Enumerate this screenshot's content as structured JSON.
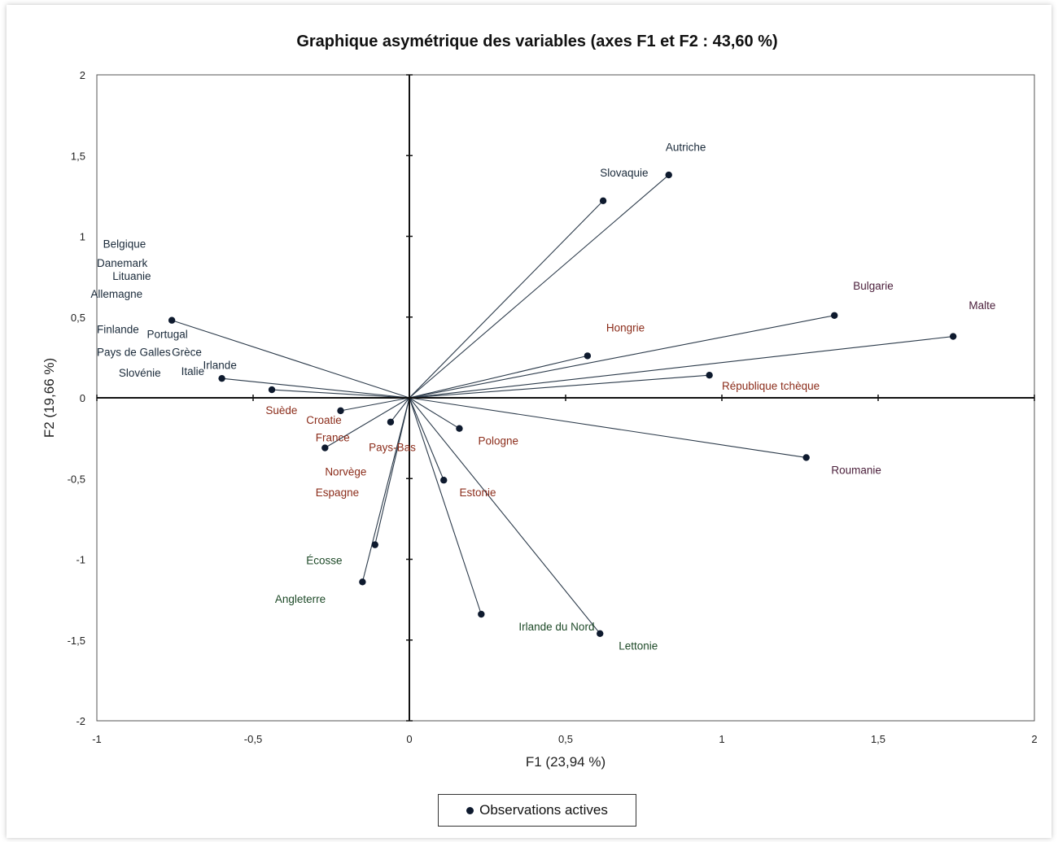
{
  "chart_data": {
    "type": "scatter",
    "title": "Graphique asymétrique des variables (axes F1 et F2 : 43,60 %)",
    "xlabel": "F1 (23,94 %)",
    "ylabel": "F2 (19,66 %)",
    "xlim": [
      -1,
      2
    ],
    "ylim": [
      -2,
      2
    ],
    "x_ticks": [
      -1,
      -0.5,
      0,
      0.5,
      1,
      1.5,
      2
    ],
    "x_tick_labels": [
      "-1",
      "-0,5",
      "0",
      "0,5",
      "1",
      "1,5",
      "2"
    ],
    "y_ticks": [
      -2,
      -1.5,
      -1,
      -0.5,
      0,
      0.5,
      1,
      1.5,
      2
    ],
    "y_tick_labels": [
      "-2",
      "-1,5",
      "-1",
      "-0,5",
      "0",
      "0,5",
      "1",
      "1,5",
      "2"
    ],
    "grid": false,
    "legend": {
      "position": "bottom",
      "label": "Observations actives"
    },
    "colors": {
      "point": "#0e1a2e",
      "line": "#2b3a4a",
      "label_dark": "#1a2a3a",
      "label_brown": "#8b2c1a",
      "label_green": "#1e4a28",
      "label_purple": "#4a1e3a"
    },
    "points": [
      {
        "x": 0.83,
        "y": 1.38
      },
      {
        "x": 0.62,
        "y": 1.22
      },
      {
        "x": 1.36,
        "y": 0.51
      },
      {
        "x": 1.74,
        "y": 0.38
      },
      {
        "x": 0.57,
        "y": 0.26
      },
      {
        "x": 0.96,
        "y": 0.14
      },
      {
        "x": 1.27,
        "y": -0.37
      },
      {
        "x": 0.16,
        "y": -0.19
      },
      {
        "x": 0.11,
        "y": -0.51
      },
      {
        "x": 0.23,
        "y": -1.34
      },
      {
        "x": 0.61,
        "y": -1.46
      },
      {
        "x": -0.76,
        "y": 0.48
      },
      {
        "x": -0.6,
        "y": 0.12
      },
      {
        "x": -0.44,
        "y": 0.05
      },
      {
        "x": -0.22,
        "y": -0.08
      },
      {
        "x": -0.06,
        "y": -0.15
      },
      {
        "x": -0.27,
        "y": -0.31
      },
      {
        "x": -0.11,
        "y": -0.91
      },
      {
        "x": -0.15,
        "y": -1.14
      }
    ],
    "labels": [
      {
        "text": "Autriche",
        "x": 0.82,
        "y": 1.53,
        "color": "dark"
      },
      {
        "text": "Slovaquie",
        "x": 0.61,
        "y": 1.37,
        "color": "dark"
      },
      {
        "text": "Bulgarie",
        "x": 1.42,
        "y": 0.67,
        "color": "purple"
      },
      {
        "text": "Malte",
        "x": 1.79,
        "y": 0.55,
        "color": "purple"
      },
      {
        "text": "Hongrie",
        "x": 0.63,
        "y": 0.41,
        "color": "brown"
      },
      {
        "text": "République tchèque",
        "x": 1.0,
        "y": 0.05,
        "color": "brown"
      },
      {
        "text": "Roumanie",
        "x": 1.35,
        "y": -0.47,
        "color": "purple"
      },
      {
        "text": "Pologne",
        "x": 0.22,
        "y": -0.29,
        "color": "brown"
      },
      {
        "text": "Estonie",
        "x": 0.16,
        "y": -0.61,
        "color": "brown"
      },
      {
        "text": "Irlande du Nord",
        "x": 0.35,
        "y": -1.44,
        "color": "green"
      },
      {
        "text": "Lettonie",
        "x": 0.67,
        "y": -1.56,
        "color": "green"
      },
      {
        "text": "Belgique",
        "x": -0.98,
        "y": 0.93,
        "color": "dark"
      },
      {
        "text": "Danemark",
        "x": -1.0,
        "y": 0.81,
        "color": "dark"
      },
      {
        "text": "Lituanie",
        "x": -0.95,
        "y": 0.73,
        "color": "dark"
      },
      {
        "text": "Allemagne",
        "x": -1.02,
        "y": 0.62,
        "color": "dark"
      },
      {
        "text": "Finlande",
        "x": -1.0,
        "y": 0.4,
        "color": "dark"
      },
      {
        "text": "Portugal",
        "x": -0.84,
        "y": 0.37,
        "color": "dark"
      },
      {
        "text": "Pays de Galles",
        "x": -1.0,
        "y": 0.26,
        "color": "dark"
      },
      {
        "text": "Grèce",
        "x": -0.76,
        "y": 0.26,
        "color": "dark"
      },
      {
        "text": "Irlande",
        "x": -0.66,
        "y": 0.18,
        "color": "dark"
      },
      {
        "text": "Italie",
        "x": -0.73,
        "y": 0.14,
        "color": "dark"
      },
      {
        "text": "Slovénie",
        "x": -0.93,
        "y": 0.13,
        "color": "dark"
      },
      {
        "text": "Suède",
        "x": -0.46,
        "y": -0.1,
        "color": "brown"
      },
      {
        "text": "Croatie",
        "x": -0.33,
        "y": -0.16,
        "color": "brown"
      },
      {
        "text": "France",
        "x": -0.3,
        "y": -0.27,
        "color": "brown"
      },
      {
        "text": "Pays-Bas",
        "x": -0.13,
        "y": -0.33,
        "color": "brown"
      },
      {
        "text": "Norvège",
        "x": -0.27,
        "y": -0.48,
        "color": "brown"
      },
      {
        "text": "Espagne",
        "x": -0.3,
        "y": -0.61,
        "color": "brown"
      },
      {
        "text": "Écosse",
        "x": -0.33,
        "y": -1.03,
        "color": "green"
      },
      {
        "text": "Angleterre",
        "x": -0.43,
        "y": -1.27,
        "color": "green"
      }
    ]
  }
}
